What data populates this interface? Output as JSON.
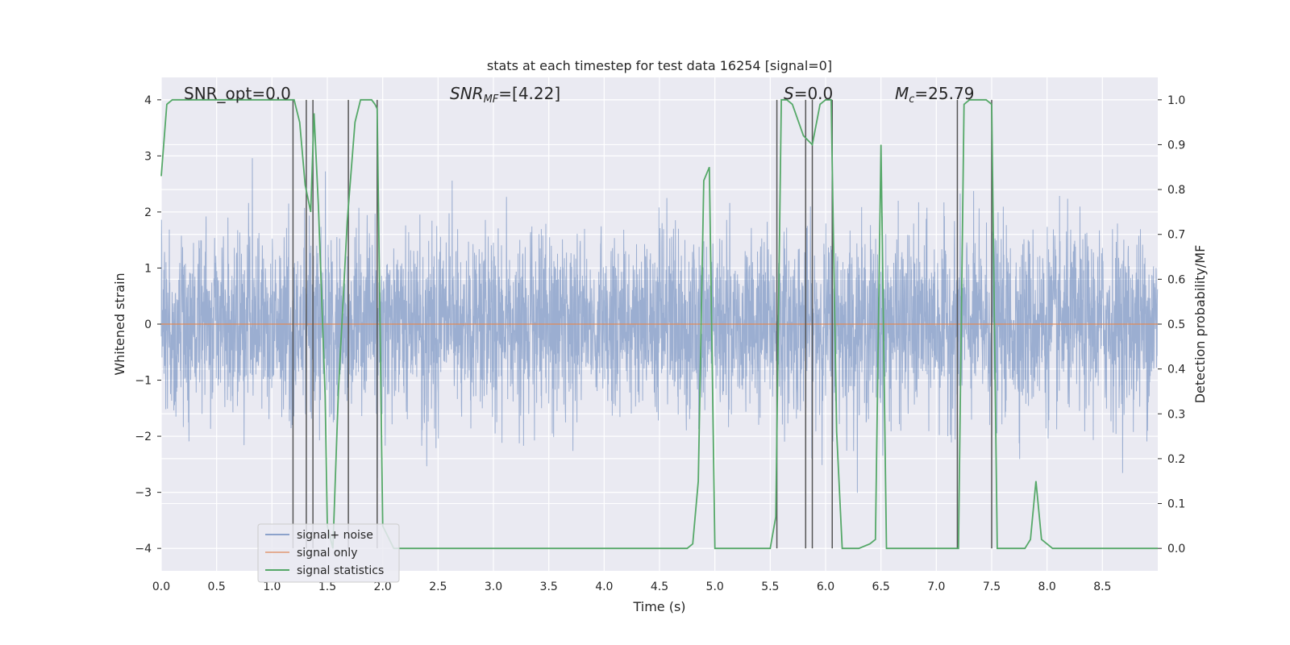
{
  "chart_data": {
    "type": "line",
    "title": "stats at each timestep for test data 16254 [signal=0]",
    "xlabel": "Time (s)",
    "ylabel": "Whitened strain",
    "y2label": "Detection probability/MF",
    "xlim": [
      0,
      9.0
    ],
    "ylim": [
      -4.4,
      4.4
    ],
    "y2lim": [
      -0.05,
      1.05
    ],
    "xticks": [
      "0.0",
      "0.5",
      "1.0",
      "1.5",
      "2.0",
      "2.5",
      "3.0",
      "3.5",
      "4.0",
      "4.5",
      "5.0",
      "5.5",
      "6.0",
      "6.5",
      "7.0",
      "7.5",
      "8.0",
      "8.5"
    ],
    "yticks": [
      "−4",
      "−3",
      "−2",
      "−1",
      "0",
      "1",
      "2",
      "3",
      "4"
    ],
    "y2ticks": [
      "0.0",
      "0.1",
      "0.2",
      "0.3",
      "0.4",
      "0.5",
      "0.6",
      "0.7",
      "0.8",
      "0.9",
      "1.0"
    ],
    "grid": true,
    "legend_position": "lower-left",
    "annotations": {
      "snr_opt": "SNR_opt=0.0",
      "snr_mf_prefix": "SNR",
      "snr_mf_sub": "MF",
      "snr_mf_value": "=[4.22]",
      "s_prefix": "S",
      "s_value": "=0.0",
      "mc_prefix": "M",
      "mc_sub": "c",
      "mc_value": "=25.79"
    },
    "colors": {
      "noise": "#4c72b0",
      "signal": "#dd8452",
      "stats": "#55a868",
      "vlines": "#555555",
      "background": "#eaeaf2"
    },
    "series": [
      {
        "name": "signal+ noise",
        "description_level": "noise",
        "sample_rate": 4096,
        "approx_std": 0.8
      },
      {
        "name": "signal only",
        "values_constant": 0
      },
      {
        "name": "signal statistics",
        "x": [
          0.0,
          0.05,
          0.1,
          0.2,
          1.2,
          1.25,
          1.3,
          1.35,
          1.38,
          1.42,
          1.48,
          1.5,
          1.55,
          1.6,
          1.68,
          1.75,
          1.8,
          1.9,
          1.93,
          1.95,
          2.0,
          2.1,
          2.5,
          3.0,
          3.5,
          4.0,
          4.5,
          4.75,
          4.8,
          4.85,
          4.9,
          4.95,
          5.0,
          5.05,
          5.1,
          5.25,
          5.3,
          5.5,
          5.55,
          5.6,
          5.65,
          5.7,
          5.8,
          5.88,
          5.95,
          6.0,
          6.05,
          6.1,
          6.15,
          6.2,
          6.3,
          6.4,
          6.45,
          6.5,
          6.55,
          6.6,
          6.7,
          6.8,
          7.0,
          7.15,
          7.2,
          7.25,
          7.3,
          7.45,
          7.5,
          7.55,
          7.6,
          7.7,
          7.75,
          7.8,
          7.85,
          7.9,
          7.95,
          8.05,
          8.2,
          8.3,
          8.5,
          8.8,
          9.0
        ],
        "values": [
          0.83,
          0.99,
          1.0,
          1.0,
          1.0,
          0.95,
          0.81,
          0.75,
          0.97,
          0.76,
          0.34,
          0.05,
          0.0,
          0.35,
          0.73,
          0.95,
          1.0,
          1.0,
          0.99,
          0.98,
          0.05,
          0.0,
          0.0,
          0.0,
          0.0,
          0.0,
          0.0,
          0.0,
          0.01,
          0.15,
          0.82,
          0.85,
          0.0,
          0.0,
          0.0,
          0.0,
          0.0,
          0.0,
          0.07,
          1.0,
          1.0,
          0.99,
          0.92,
          0.9,
          0.99,
          1.0,
          1.0,
          0.26,
          0.0,
          0.0,
          0.0,
          0.01,
          0.02,
          0.9,
          0.0,
          0.0,
          0.0,
          0.0,
          0.0,
          0.0,
          0.0,
          0.99,
          1.0,
          1.0,
          0.99,
          0.0,
          0.0,
          0.0,
          0.0,
          0.0,
          0.02,
          0.15,
          0.02,
          0.0,
          0.0,
          0.0,
          0.0,
          0.0,
          0.0
        ]
      }
    ],
    "vertical_lines_x": [
      1.19,
      1.31,
      1.37,
      1.69,
      1.95,
      5.56,
      5.82,
      5.88,
      6.06,
      7.19,
      7.5
    ]
  }
}
